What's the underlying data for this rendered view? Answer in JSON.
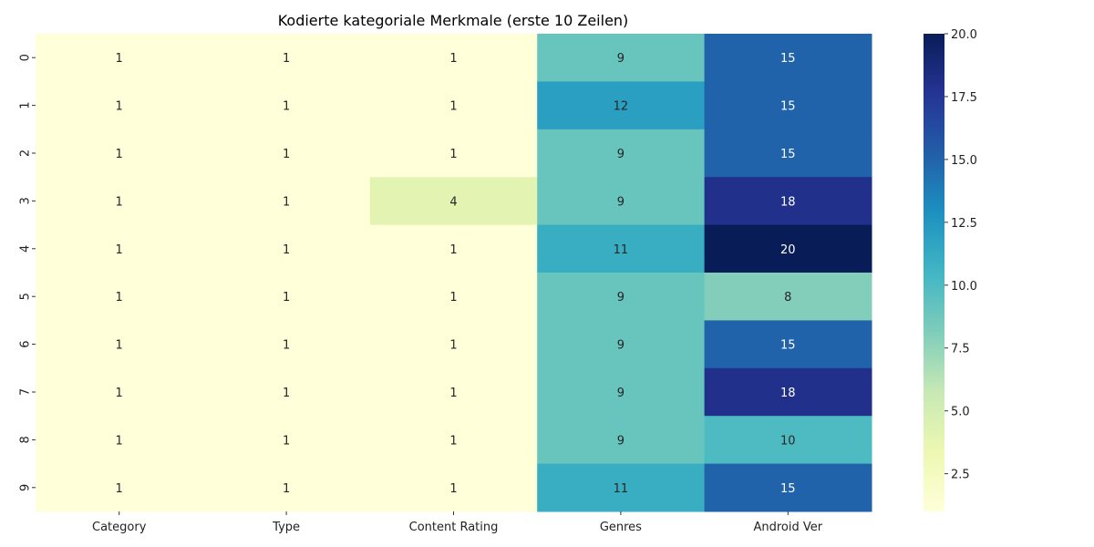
{
  "chart_data": {
    "type": "heatmap",
    "title": "Kodierte kategoriale Merkmale (erste 10 Zeilen)",
    "xlabel": "",
    "ylabel": "",
    "columns": [
      "Category",
      "Type",
      "Content Rating",
      "Genres",
      "Android Ver"
    ],
    "rows": [
      "0",
      "1",
      "2",
      "3",
      "4",
      "5",
      "6",
      "7",
      "8",
      "9"
    ],
    "values": [
      [
        1,
        1,
        1,
        9,
        15
      ],
      [
        1,
        1,
        1,
        12,
        15
      ],
      [
        1,
        1,
        1,
        9,
        15
      ],
      [
        1,
        1,
        4,
        9,
        18
      ],
      [
        1,
        1,
        1,
        11,
        20
      ],
      [
        1,
        1,
        1,
        9,
        8
      ],
      [
        1,
        1,
        1,
        9,
        15
      ],
      [
        1,
        1,
        1,
        9,
        18
      ],
      [
        1,
        1,
        1,
        9,
        10
      ],
      [
        1,
        1,
        1,
        11,
        15
      ]
    ],
    "colormap": "YlGnBu",
    "colorbar": {
      "range": [
        1,
        20
      ],
      "ticks": [
        2.5,
        5.0,
        7.5,
        10.0,
        12.5,
        15.0,
        17.5,
        20.0
      ],
      "tick_labels": [
        "2.5",
        "5.0",
        "7.5",
        "10.0",
        "12.5",
        "15.0",
        "17.5",
        "20.0"
      ]
    },
    "annotated": true,
    "grid": false
  }
}
